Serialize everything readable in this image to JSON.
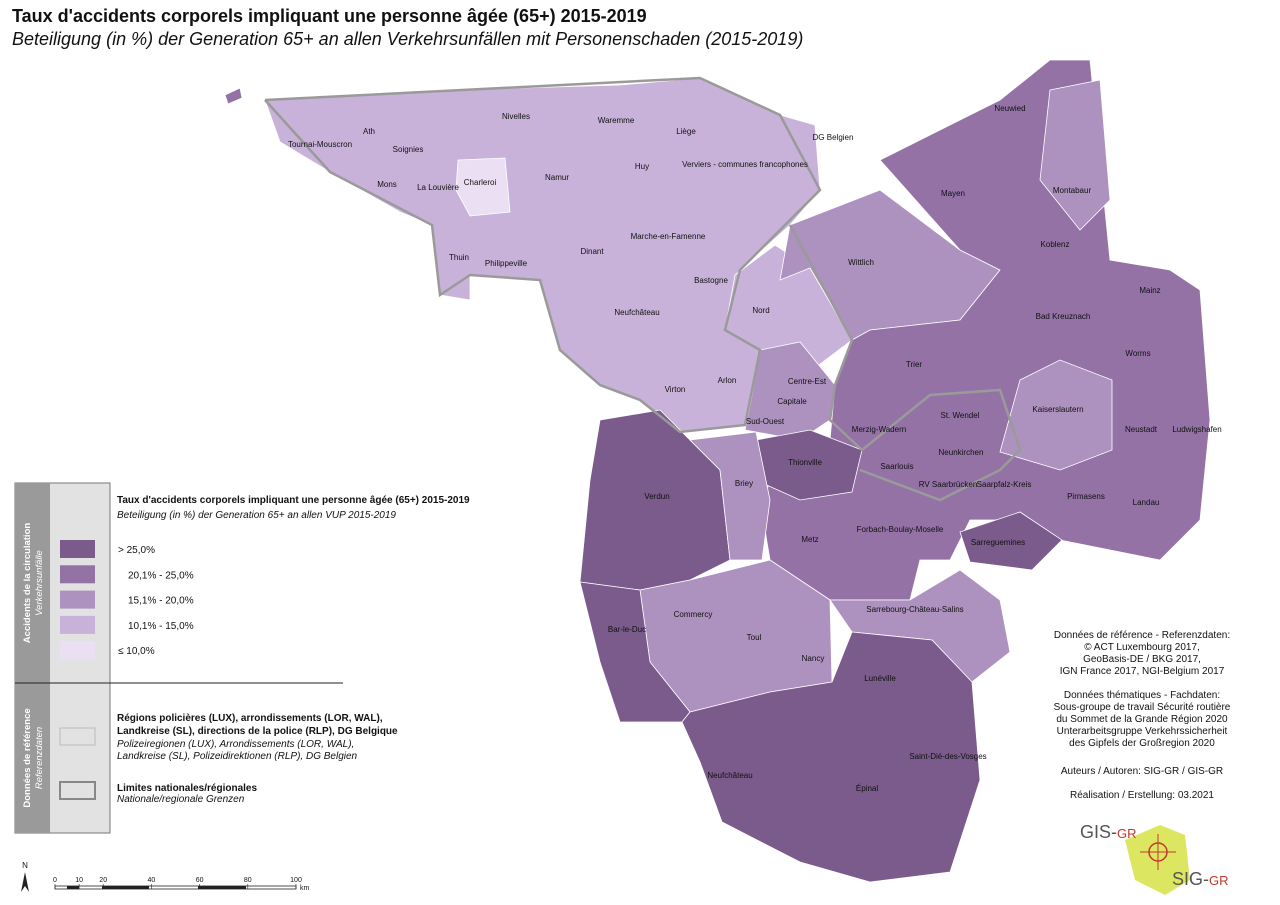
{
  "header": {
    "title": "Taux d'accidents corporels impliquant une personne âgée (65+) 2015-2019",
    "subtitle": "Beteiligung (in %) der Generation 65+ an allen Verkehrsunfällen mit Personenschaden (2015-2019)"
  },
  "map": {
    "labels": [
      "Tournai-Mouscron",
      "Ath",
      "Soignies",
      "Mons",
      "La Louvière",
      "Charleroi",
      "Nivelles",
      "Waremme",
      "Liège",
      "Huy",
      "Namur",
      "Verviers - communes francophones",
      "DG Belgien",
      "Thuin",
      "Philippeville",
      "Dinant",
      "Marche-en-Famenne",
      "Bastogne",
      "Neufchâteau",
      "Virton",
      "Arlon",
      "Nord",
      "Centre-Est",
      "Capitale",
      "Sud-Ouest",
      "Neuwied",
      "Montabaur",
      "Mayen",
      "Koblenz",
      "Wittlich",
      "Mainz",
      "Bad Kreuznach",
      "Worms",
      "Trier",
      "Kaiserslautern",
      "St. Wendel",
      "Merzig-Wadern",
      "Neustadt",
      "Ludwigshafen",
      "Neunkirchen",
      "Saarlouis",
      "RV Saarbrücken",
      "Saarpfalz-Kreis",
      "Pirmasens",
      "Landau",
      "Thionville",
      "Verdun",
      "Briey",
      "Metz",
      "Forbach-Boulay-Moselle",
      "Sarreguemines",
      "Sarrebourg-Château-Salins",
      "Commercy",
      "Bar-le-Duc",
      "Toul",
      "Nancy",
      "Lunéville",
      "Saint-Dié-des-Vosges",
      "Neufchâteau",
      "Épinal"
    ]
  },
  "legend": {
    "heading_main": "Accidents de la circulation",
    "heading_main_de": "Verkehrsunfälle",
    "heading_ref": "Données de référence",
    "heading_ref_de": "Referenzdaten",
    "title": "Taux d'accidents corporels impliquant une personne âgée (65+) 2015-2019",
    "subtitle": "Beteiligung (in %) der Generation 65+ an allen VUP 2015-2019",
    "classes": [
      {
        "label": "> 25,0%",
        "color": "#7b5a8c"
      },
      {
        "label": "20,1% - 25,0%",
        "color": "#9472a6"
      },
      {
        "label": "15,1% - 20,0%",
        "color": "#ad91bf"
      },
      {
        "label": "10,1% - 15,0%",
        "color": "#c9b2d9"
      },
      {
        "label": "≤ 10,0%",
        "color": "#ebe0f3"
      }
    ],
    "boundaries": [
      "Régions policières (LUX), arrondissements (LOR, WAL),",
      "Landkreise (SL), directions de la police (RLP), DG Belgique",
      "Polizeiregionen (LUX), Arrondissements (LOR, WAL),",
      "Landkreise (SL), Polizeidirektionen (RLP), DG Belgien"
    ],
    "limits": [
      "Limites nationales/régionales",
      "Nationale/regionale Grenzen"
    ]
  },
  "credits": [
    "Données de référence - Referenzdaten:",
    "© ACT Luxembourg 2017,",
    "GeoBasis-DE / BKG 2017,",
    "IGN France 2017, NGI-Belgium 2017",
    "Données thématiques - Fachdaten:",
    "Sous-groupe de travail Sécurité routière",
    "du Sommet de la Grande Région 2020",
    "Unterarbeitsgruppe Verkehrssicherheit",
    "des Gipfels der Großregion 2020",
    "Auteurs / Autoren: SIG-GR / GIS-GR",
    "Réalisation / Erstellung: 03.2021"
  ],
  "scale": {
    "ticks": [
      0,
      10,
      20,
      40,
      60,
      80,
      100
    ],
    "unit": "km",
    "north": "N"
  },
  "logo": {
    "top": "GIS-",
    "top_suffix": "GR",
    "bottom": "SIG-",
    "bottom_suffix": "GR"
  }
}
